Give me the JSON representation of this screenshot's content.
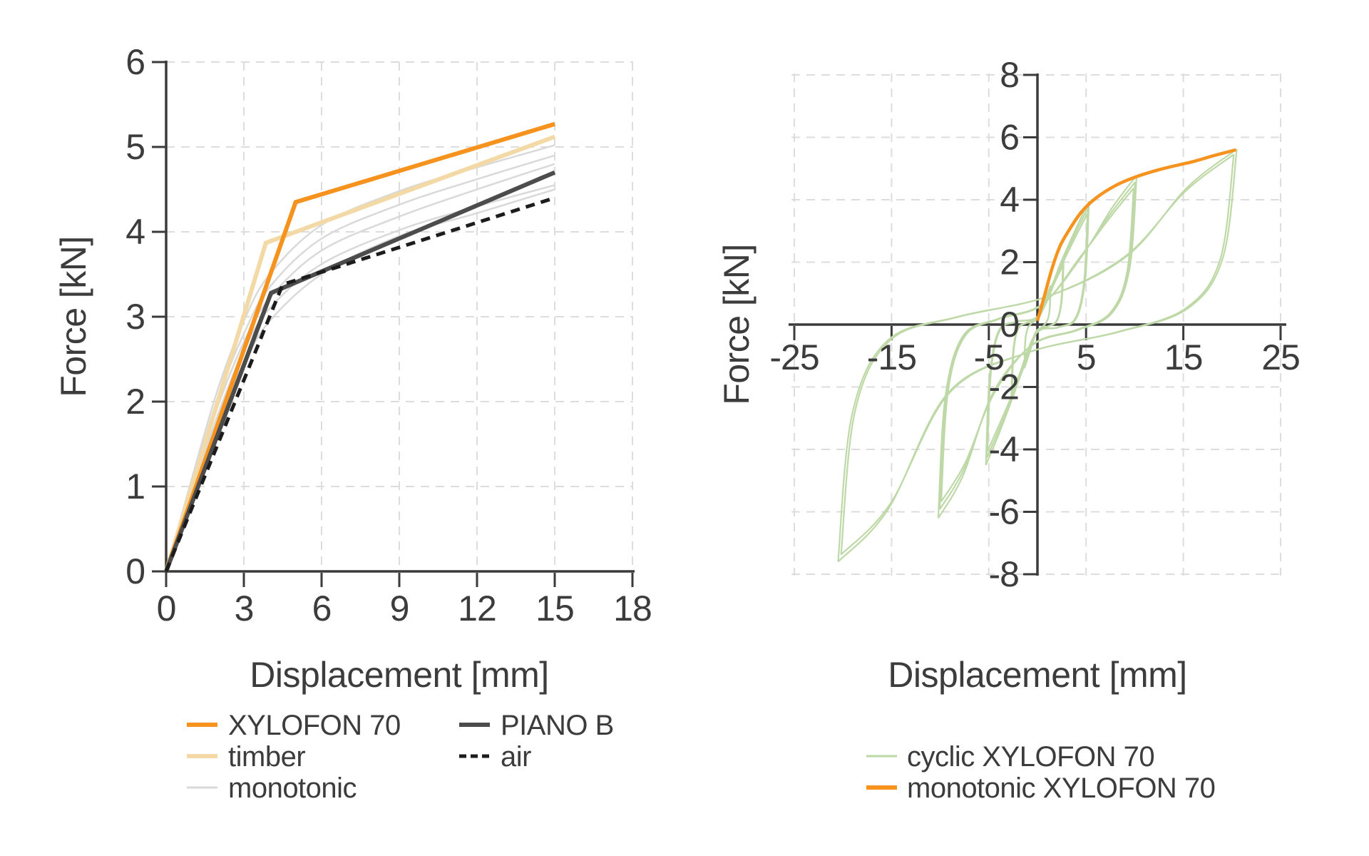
{
  "page": {
    "background": "#ffffff",
    "text_color": "#3c3c3c",
    "grid_color": "#dddddd",
    "axis_color": "#3b3b3b"
  },
  "chart_data": [
    {
      "type": "line",
      "title": "",
      "xlabel": "Displacement [mm]",
      "ylabel": "Force [kN]",
      "xlim": [
        0,
        18
      ],
      "ylim": [
        0,
        6
      ],
      "x_ticks": [
        0,
        3,
        6,
        9,
        12,
        15,
        18
      ],
      "y_ticks": [
        0,
        1,
        2,
        3,
        4,
        5,
        6
      ],
      "grid": "dashed",
      "legend_position": "below-left",
      "series": [
        {
          "name": "monotonic",
          "color": "#d9d9d9",
          "width": 2.5,
          "style": "solid",
          "smooth": true,
          "multi_points": [
            [
              [
                0,
                0
              ],
              [
                1,
                0.95
              ],
              [
                2,
                1.85
              ],
              [
                3,
                2.6
              ],
              [
                4,
                3.1
              ],
              [
                6,
                3.62
              ],
              [
                9,
                4.02
              ],
              [
                12,
                4.3
              ],
              [
                15,
                4.55
              ]
            ],
            [
              [
                0,
                0
              ],
              [
                1,
                1.0
              ],
              [
                2,
                1.95
              ],
              [
                3,
                2.7
              ],
              [
                4,
                3.22
              ],
              [
                6,
                3.78
              ],
              [
                9,
                4.18
              ],
              [
                12,
                4.5
              ],
              [
                15,
                4.8
              ]
            ],
            [
              [
                0,
                0
              ],
              [
                1,
                1.05
              ],
              [
                2,
                2.05
              ],
              [
                3,
                2.8
              ],
              [
                4,
                3.35
              ],
              [
                6,
                3.92
              ],
              [
                9,
                4.32
              ],
              [
                12,
                4.62
              ],
              [
                15,
                4.9
              ]
            ],
            [
              [
                0,
                0
              ],
              [
                1,
                1.1
              ],
              [
                2,
                2.15
              ],
              [
                3,
                2.95
              ],
              [
                4,
                3.5
              ],
              [
                6,
                4.08
              ],
              [
                9,
                4.48
              ],
              [
                12,
                4.76
              ],
              [
                15,
                5.02
              ]
            ],
            [
              [
                0,
                0
              ],
              [
                1,
                0.9
              ],
              [
                2,
                1.75
              ],
              [
                3,
                2.45
              ],
              [
                4,
                2.95
              ],
              [
                6,
                3.5
              ],
              [
                9,
                3.95
              ],
              [
                12,
                4.22
              ],
              [
                15,
                4.5
              ]
            ]
          ]
        },
        {
          "name": "timber",
          "color": "#f3d9a5",
          "width": 6,
          "style": "solid",
          "smooth": false,
          "points": [
            [
              0,
              0
            ],
            [
              3.85,
              3.87
            ],
            [
              15,
              5.12
            ]
          ]
        },
        {
          "name": "XYLOFON 70",
          "color": "#f6921e",
          "width": 6,
          "style": "solid",
          "smooth": false,
          "points": [
            [
              0,
              0
            ],
            [
              5,
              4.35
            ],
            [
              15,
              5.27
            ]
          ]
        },
        {
          "name": "PIANO B",
          "color": "#4c4c4c",
          "width": 6,
          "style": "solid",
          "smooth": false,
          "points": [
            [
              0,
              0
            ],
            [
              4.05,
              3.28
            ],
            [
              15,
              4.7
            ]
          ]
        },
        {
          "name": "air",
          "color": "#1c1c1c",
          "width": 5,
          "style": "dashed",
          "dash": "13 9",
          "smooth": false,
          "points": [
            [
              0,
              0
            ],
            [
              4.5,
              3.38
            ],
            [
              15,
              4.4
            ]
          ]
        }
      ],
      "legend": [
        {
          "label": "XYLOFON 70",
          "color": "#f6921e",
          "width": 6,
          "dash": "",
          "column": 0,
          "row": 0
        },
        {
          "label": "timber",
          "color": "#f3d9a5",
          "width": 6,
          "dash": "",
          "column": 0,
          "row": 1
        },
        {
          "label": "monotonic",
          "color": "#d9d9d9",
          "width": 3,
          "dash": "",
          "column": 0,
          "row": 2
        },
        {
          "label": "PIANO B",
          "color": "#4c4c4c",
          "width": 6,
          "dash": "",
          "column": 1,
          "row": 0
        },
        {
          "label": "air",
          "color": "#1c1c1c",
          "width": 5,
          "dash": "10 6",
          "column": 1,
          "row": 1
        }
      ]
    },
    {
      "type": "line",
      "title": "",
      "xlabel": "Displacement [mm]",
      "ylabel": "Force [kN]",
      "xlim": [
        -25.6,
        25.6
      ],
      "ylim": [
        -8,
        8
      ],
      "x_ticks": [
        -25,
        -15,
        -5,
        5,
        15,
        25
      ],
      "y_ticks": [
        8,
        6,
        4,
        2,
        0,
        -2,
        -4,
        -6,
        -8
      ],
      "grid": "dashed",
      "legend_position": "below-center",
      "series": [
        {
          "name": "cyclic XYLOFON 70",
          "color": "#bed9a7",
          "width": 2.2,
          "style": "solid",
          "loops": [
            {
              "amp": 1.35,
              "f_pos": 1.25,
              "f_neg": -1.4,
              "cycles": [
                1,
                0.92
              ]
            },
            {
              "amp": 2.7,
              "f_pos": 2.1,
              "f_neg": -2.4,
              "cycles": [
                1,
                0.95,
                0.9
              ]
            },
            {
              "amp": 5.3,
              "f_pos": 3.95,
              "f_neg": -4.5,
              "cycles": [
                1,
                0.95,
                0.9
              ]
            },
            {
              "amp": 10.2,
              "f_pos": 4.78,
              "f_neg": -6.2,
              "cycles": [
                1,
                0.955,
                0.915
              ]
            },
            {
              "amp": 20.5,
              "f_pos": 5.62,
              "f_neg": -7.6,
              "cycles": [
                1,
                0.97
              ]
            }
          ]
        },
        {
          "name": "monotonic XYLOFON 70",
          "color": "#f6921e",
          "width": 4.5,
          "style": "solid",
          "smooth": true,
          "points": [
            [
              0,
              0.12
            ],
            [
              0.7,
              0.9
            ],
            [
              1.5,
              1.8
            ],
            [
              2.3,
              2.5
            ],
            [
              3.2,
              3.0
            ],
            [
              4.5,
              3.6
            ],
            [
              6,
              4.05
            ],
            [
              8,
              4.45
            ],
            [
              10,
              4.72
            ],
            [
              12,
              4.92
            ],
            [
              14,
              5.08
            ],
            [
              16,
              5.22
            ],
            [
              18,
              5.4
            ],
            [
              20.4,
              5.6
            ]
          ]
        }
      ],
      "legend": [
        {
          "label": "cyclic XYLOFON 70",
          "color": "#bed9a7",
          "width": 3,
          "dash": "",
          "column": 0,
          "row": 0
        },
        {
          "label": "monotonic XYLOFON 70",
          "color": "#f6921e",
          "width": 6,
          "dash": "",
          "column": 0,
          "row": 1
        }
      ]
    }
  ]
}
